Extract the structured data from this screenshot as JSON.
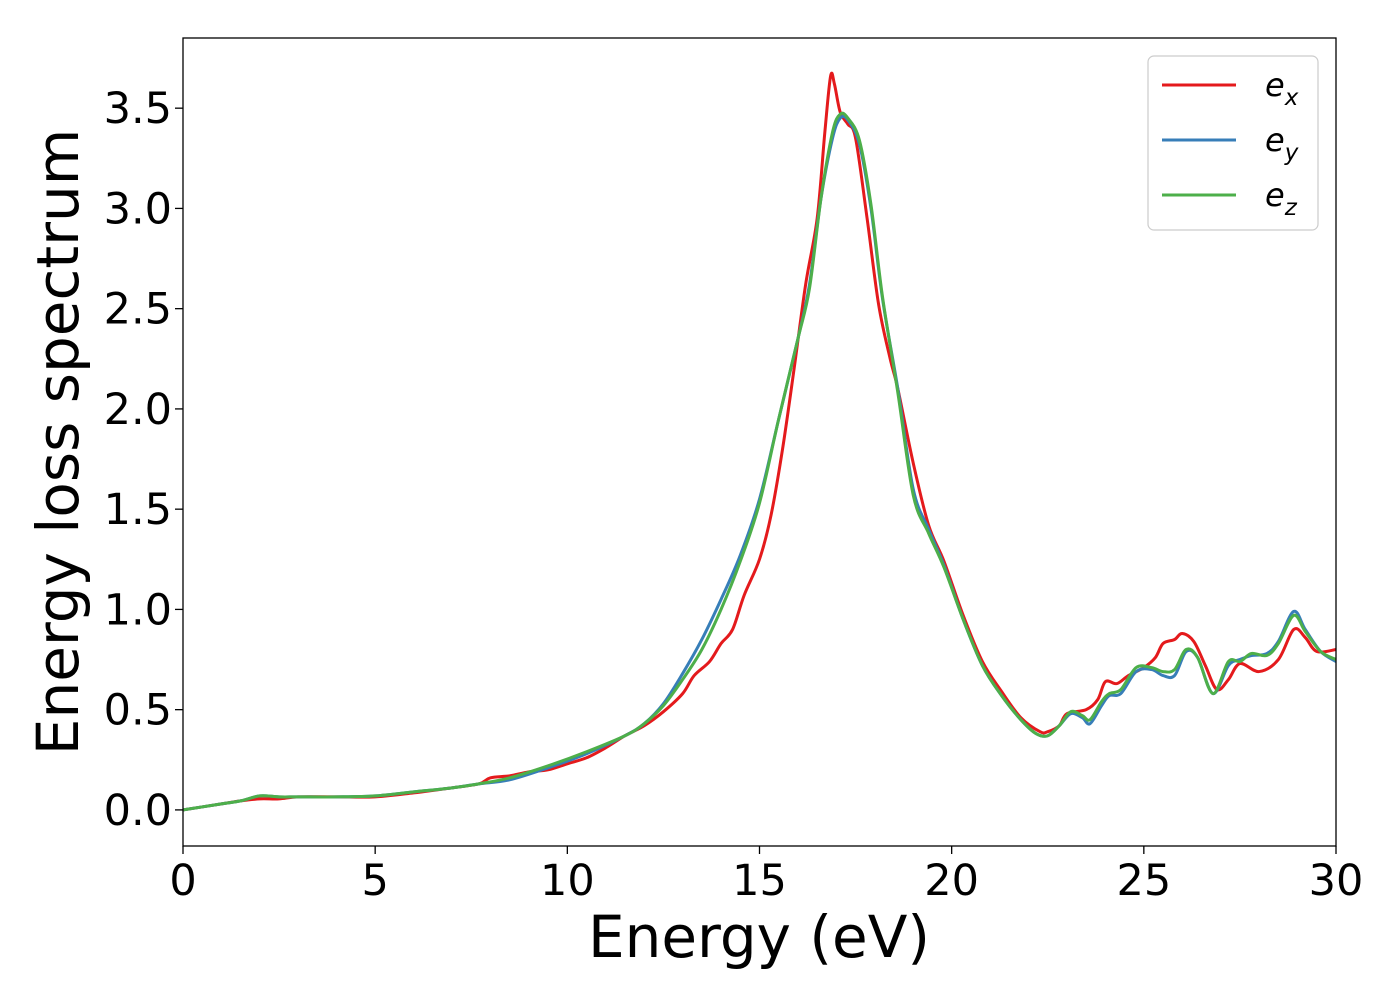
{
  "chart_data": {
    "type": "line",
    "xlabel": "Energy (eV)",
    "ylabel": "Energy loss spectrum",
    "xlim": [
      0,
      30
    ],
    "ylim": [
      -0.18,
      3.85
    ],
    "xticks": [
      0,
      5,
      10,
      15,
      20,
      25,
      30
    ],
    "xtick_labels": [
      "0",
      "5",
      "10",
      "15",
      "20",
      "25",
      "30"
    ],
    "yticks": [
      0.0,
      0.5,
      1.0,
      1.5,
      2.0,
      2.5,
      3.0,
      3.5
    ],
    "ytick_labels": [
      "0.0",
      "0.5",
      "1.0",
      "1.5",
      "2.0",
      "2.5",
      "3.0",
      "3.5"
    ],
    "grid": false,
    "legend_position": "top-right",
    "series": [
      {
        "name": "e_x",
        "label_base": "e",
        "label_sub": "x",
        "color": "#e41a1c",
        "points": [
          [
            0,
            0.0
          ],
          [
            1,
            0.03
          ],
          [
            1.5,
            0.045
          ],
          [
            2,
            0.055
          ],
          [
            2.5,
            0.055
          ],
          [
            3,
            0.065
          ],
          [
            4,
            0.065
          ],
          [
            5,
            0.065
          ],
          [
            6,
            0.085
          ],
          [
            7,
            0.11
          ],
          [
            7.7,
            0.13
          ],
          [
            8,
            0.16
          ],
          [
            8.5,
            0.17
          ],
          [
            9,
            0.19
          ],
          [
            9.5,
            0.2
          ],
          [
            10,
            0.23
          ],
          [
            10.5,
            0.26
          ],
          [
            11,
            0.31
          ],
          [
            11.5,
            0.37
          ],
          [
            12,
            0.42
          ],
          [
            12.5,
            0.49
          ],
          [
            13,
            0.58
          ],
          [
            13.3,
            0.67
          ],
          [
            13.7,
            0.74
          ],
          [
            14,
            0.83
          ],
          [
            14.3,
            0.9
          ],
          [
            14.6,
            1.07
          ],
          [
            15,
            1.25
          ],
          [
            15.3,
            1.47
          ],
          [
            15.6,
            1.8
          ],
          [
            15.9,
            2.2
          ],
          [
            16.2,
            2.62
          ],
          [
            16.5,
            2.95
          ],
          [
            16.7,
            3.38
          ],
          [
            16.85,
            3.66
          ],
          [
            16.95,
            3.62
          ],
          [
            17.1,
            3.48
          ],
          [
            17.3,
            3.42
          ],
          [
            17.5,
            3.35
          ],
          [
            17.8,
            2.95
          ],
          [
            18.1,
            2.52
          ],
          [
            18.4,
            2.25
          ],
          [
            18.6,
            2.1
          ],
          [
            19,
            1.73
          ],
          [
            19.4,
            1.42
          ],
          [
            19.8,
            1.24
          ],
          [
            20.3,
            0.97
          ],
          [
            20.8,
            0.74
          ],
          [
            21.3,
            0.59
          ],
          [
            21.8,
            0.46
          ],
          [
            22.3,
            0.39
          ],
          [
            22.5,
            0.39
          ],
          [
            22.8,
            0.42
          ],
          [
            23,
            0.48
          ],
          [
            23.5,
            0.5
          ],
          [
            23.8,
            0.55
          ],
          [
            24,
            0.64
          ],
          [
            24.3,
            0.63
          ],
          [
            24.6,
            0.67
          ],
          [
            25,
            0.71
          ],
          [
            25.3,
            0.76
          ],
          [
            25.5,
            0.83
          ],
          [
            25.8,
            0.85
          ],
          [
            26,
            0.88
          ],
          [
            26.3,
            0.84
          ],
          [
            26.6,
            0.72
          ],
          [
            26.9,
            0.6
          ],
          [
            27.2,
            0.65
          ],
          [
            27.5,
            0.73
          ],
          [
            28,
            0.69
          ],
          [
            28.5,
            0.75
          ],
          [
            28.9,
            0.9
          ],
          [
            29.2,
            0.86
          ],
          [
            29.5,
            0.79
          ],
          [
            30,
            0.8
          ]
        ]
      },
      {
        "name": "e_y",
        "label_base": "e",
        "label_sub": "y",
        "color": "#377eb8",
        "points": [
          [
            0,
            0.0
          ],
          [
            1,
            0.03
          ],
          [
            1.5,
            0.045
          ],
          [
            2,
            0.07
          ],
          [
            2.5,
            0.065
          ],
          [
            3,
            0.065
          ],
          [
            4,
            0.065
          ],
          [
            5,
            0.07
          ],
          [
            6,
            0.09
          ],
          [
            7,
            0.11
          ],
          [
            7.7,
            0.13
          ],
          [
            8.5,
            0.15
          ],
          [
            9.5,
            0.21
          ],
          [
            10.5,
            0.28
          ],
          [
            11.5,
            0.37
          ],
          [
            12,
            0.43
          ],
          [
            12.5,
            0.53
          ],
          [
            13,
            0.68
          ],
          [
            13.5,
            0.85
          ],
          [
            14,
            1.05
          ],
          [
            14.5,
            1.27
          ],
          [
            15,
            1.55
          ],
          [
            15.5,
            1.95
          ],
          [
            16,
            2.35
          ],
          [
            16.3,
            2.62
          ],
          [
            16.6,
            3.05
          ],
          [
            16.9,
            3.35
          ],
          [
            17.1,
            3.45
          ],
          [
            17.3,
            3.44
          ],
          [
            17.6,
            3.32
          ],
          [
            17.9,
            3.0
          ],
          [
            18.2,
            2.55
          ],
          [
            18.6,
            2.1
          ],
          [
            19,
            1.6
          ],
          [
            19.4,
            1.4
          ],
          [
            19.8,
            1.22
          ],
          [
            20.3,
            0.95
          ],
          [
            20.8,
            0.72
          ],
          [
            21.3,
            0.57
          ],
          [
            21.8,
            0.45
          ],
          [
            22.2,
            0.38
          ],
          [
            22.5,
            0.37
          ],
          [
            22.8,
            0.42
          ],
          [
            23.1,
            0.48
          ],
          [
            23.4,
            0.46
          ],
          [
            23.6,
            0.43
          ],
          [
            23.9,
            0.52
          ],
          [
            24.1,
            0.57
          ],
          [
            24.4,
            0.58
          ],
          [
            24.8,
            0.69
          ],
          [
            25.2,
            0.7
          ],
          [
            25.5,
            0.67
          ],
          [
            25.8,
            0.67
          ],
          [
            26.1,
            0.79
          ],
          [
            26.4,
            0.76
          ],
          [
            26.8,
            0.58
          ],
          [
            27.2,
            0.72
          ],
          [
            27.5,
            0.75
          ],
          [
            27.8,
            0.77
          ],
          [
            28.2,
            0.78
          ],
          [
            28.5,
            0.84
          ],
          [
            28.9,
            0.99
          ],
          [
            29.2,
            0.9
          ],
          [
            29.6,
            0.79
          ],
          [
            30,
            0.74
          ]
        ]
      },
      {
        "name": "e_z",
        "label_base": "e",
        "label_sub": "z",
        "color": "#4daf4a",
        "points": [
          [
            0,
            0.0
          ],
          [
            1,
            0.03
          ],
          [
            1.5,
            0.045
          ],
          [
            2,
            0.07
          ],
          [
            2.5,
            0.065
          ],
          [
            3,
            0.065
          ],
          [
            4,
            0.065
          ],
          [
            5,
            0.07
          ],
          [
            6,
            0.09
          ],
          [
            7,
            0.11
          ],
          [
            7.7,
            0.13
          ],
          [
            8.5,
            0.16
          ],
          [
            9.5,
            0.22
          ],
          [
            10.5,
            0.29
          ],
          [
            11.5,
            0.37
          ],
          [
            12,
            0.43
          ],
          [
            12.5,
            0.52
          ],
          [
            13,
            0.65
          ],
          [
            13.5,
            0.8
          ],
          [
            14,
            1.0
          ],
          [
            14.5,
            1.24
          ],
          [
            15,
            1.53
          ],
          [
            15.5,
            1.95
          ],
          [
            16,
            2.35
          ],
          [
            16.3,
            2.6
          ],
          [
            16.6,
            3.05
          ],
          [
            16.9,
            3.38
          ],
          [
            17.1,
            3.47
          ],
          [
            17.3,
            3.45
          ],
          [
            17.6,
            3.34
          ],
          [
            17.9,
            3.02
          ],
          [
            18.2,
            2.56
          ],
          [
            18.6,
            2.08
          ],
          [
            19,
            1.57
          ],
          [
            19.4,
            1.38
          ],
          [
            19.8,
            1.21
          ],
          [
            20.3,
            0.95
          ],
          [
            20.8,
            0.72
          ],
          [
            21.3,
            0.57
          ],
          [
            21.8,
            0.45
          ],
          [
            22.2,
            0.38
          ],
          [
            22.5,
            0.37
          ],
          [
            22.8,
            0.42
          ],
          [
            23.1,
            0.49
          ],
          [
            23.4,
            0.47
          ],
          [
            23.6,
            0.45
          ],
          [
            23.9,
            0.54
          ],
          [
            24.1,
            0.58
          ],
          [
            24.4,
            0.6
          ],
          [
            24.8,
            0.71
          ],
          [
            25.2,
            0.71
          ],
          [
            25.5,
            0.69
          ],
          [
            25.8,
            0.7
          ],
          [
            26.1,
            0.8
          ],
          [
            26.4,
            0.76
          ],
          [
            26.8,
            0.58
          ],
          [
            27.2,
            0.74
          ],
          [
            27.5,
            0.74
          ],
          [
            27.8,
            0.78
          ],
          [
            28.2,
            0.77
          ],
          [
            28.5,
            0.83
          ],
          [
            28.9,
            0.97
          ],
          [
            29.2,
            0.89
          ],
          [
            29.6,
            0.79
          ],
          [
            30,
            0.75
          ]
        ]
      }
    ]
  }
}
